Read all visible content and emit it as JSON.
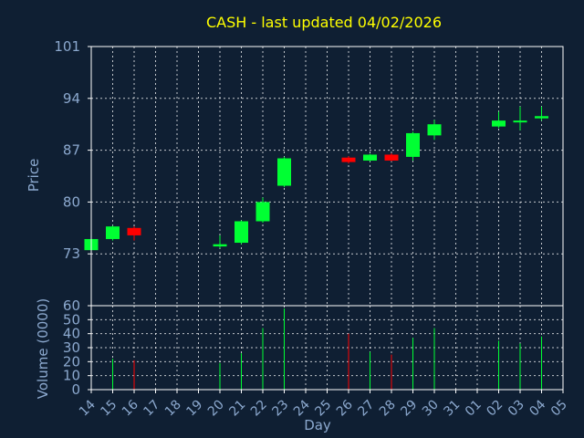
{
  "title": "CASH - last updated 04/02/2026",
  "colors": {
    "background": "#0f1f33",
    "up": "#00ff33",
    "down": "#ff0000",
    "axis": "#ffffff",
    "text": "#8ca9cf",
    "title": "#ffff00",
    "grid": "#ffffff"
  },
  "chart_data": [
    {
      "type": "candlestick",
      "title": "CASH - last updated 04/02/2026",
      "ylabel": "Price",
      "xlabel": "",
      "ylim": [
        66,
        101
      ],
      "yticks": [
        73,
        80,
        87,
        94,
        101
      ],
      "grid": true,
      "series": [
        {
          "points": [
            {
              "day": "14",
              "open": 73.5,
              "high": 75.0,
              "low": 73.5,
              "close": 75.0
            },
            {
              "day": "15",
              "open": 75.0,
              "high": 76.8,
              "low": 74.8,
              "close": 76.7
            },
            {
              "day": "16",
              "open": 76.5,
              "high": 76.7,
              "low": 74.8,
              "close": 75.5
            },
            {
              "day": "20",
              "open": 74.0,
              "high": 75.5,
              "low": 73.8,
              "close": 74.3
            },
            {
              "day": "21",
              "open": 74.5,
              "high": 77.5,
              "low": 74.3,
              "close": 77.4
            },
            {
              "day": "22",
              "open": 77.4,
              "high": 80.6,
              "low": 77.2,
              "close": 80.0
            },
            {
              "day": "23",
              "open": 82.2,
              "high": 86.1,
              "low": 82.0,
              "close": 85.9
            },
            {
              "day": "26",
              "open": 86.0,
              "high": 86.2,
              "low": 85.2,
              "close": 85.4
            },
            {
              "day": "27",
              "open": 85.6,
              "high": 86.5,
              "low": 85.5,
              "close": 86.4
            },
            {
              "day": "28",
              "open": 86.4,
              "high": 86.6,
              "low": 85.5,
              "close": 85.6
            },
            {
              "day": "29",
              "open": 86.1,
              "high": 89.5,
              "low": 85.6,
              "close": 89.3
            },
            {
              "day": "30",
              "open": 89.0,
              "high": 91.1,
              "low": 88.4,
              "close": 90.5
            },
            {
              "day": "02",
              "open": 90.2,
              "high": 92.2,
              "low": 90.0,
              "close": 91.0
            },
            {
              "day": "03",
              "open": 91.0,
              "high": 92.9,
              "low": 89.7,
              "close": 91.0
            },
            {
              "day": "04",
              "open": 91.3,
              "high": 92.9,
              "low": 91.0,
              "close": 91.6
            }
          ]
        }
      ]
    },
    {
      "type": "bar",
      "ylabel": "Volume (0000)",
      "xlabel": "Day",
      "ylim": [
        0,
        60
      ],
      "yticks": [
        0,
        10,
        20,
        30,
        40,
        50,
        60
      ],
      "categories": [
        "14",
        "15",
        "16",
        "17",
        "18",
        "19",
        "20",
        "21",
        "22",
        "23",
        "24",
        "25",
        "26",
        "27",
        "28",
        "29",
        "30",
        "31",
        "01",
        "02",
        "03",
        "04",
        "05"
      ],
      "grid": true,
      "series": [
        {
          "points": [
            {
              "day": "15",
              "volume": 22,
              "direction": "up"
            },
            {
              "day": "16",
              "volume": 21,
              "direction": "down"
            },
            {
              "day": "20",
              "volume": 19,
              "direction": "up"
            },
            {
              "day": "21",
              "volume": 26,
              "direction": "up"
            },
            {
              "day": "22",
              "volume": 44,
              "direction": "up"
            },
            {
              "day": "23",
              "volume": 58,
              "direction": "up"
            },
            {
              "day": "26",
              "volume": 40,
              "direction": "down"
            },
            {
              "day": "27",
              "volume": 27,
              "direction": "up"
            },
            {
              "day": "28",
              "volume": 25,
              "direction": "down"
            },
            {
              "day": "29",
              "volume": 37,
              "direction": "up"
            },
            {
              "day": "30",
              "volume": 44,
              "direction": "up"
            },
            {
              "day": "02",
              "volume": 35,
              "direction": "up"
            },
            {
              "day": "03",
              "volume": 33,
              "direction": "up"
            },
            {
              "day": "04",
              "volume": 38,
              "direction": "up"
            }
          ]
        }
      ]
    }
  ]
}
